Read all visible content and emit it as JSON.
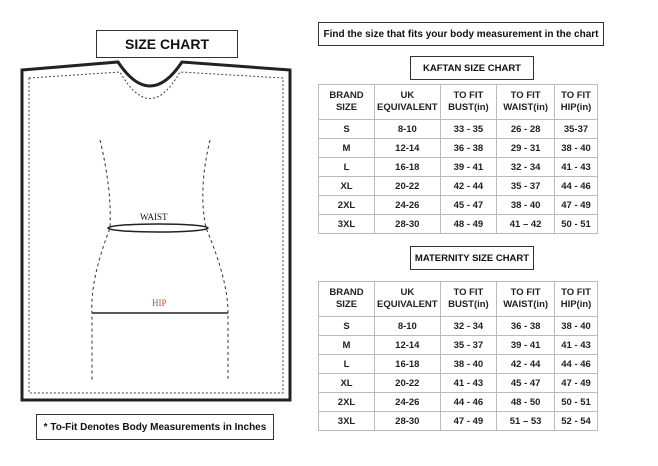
{
  "title": "SIZE CHART",
  "instruction": "Find the size that fits your body measurement in the chart",
  "footnote": "* To-Fit Denotes Body Measurements in Inches",
  "drawing": {
    "waist_label": "WAIST",
    "hip_label": "HIP",
    "label_color": "#b0532e"
  },
  "headers": [
    [
      "BRAND",
      "SIZE"
    ],
    [
      "UK",
      "EQUIVALENT"
    ],
    [
      "TO FIT",
      "BUST(in)"
    ],
    [
      "TO FIT",
      "WAIST(in)"
    ],
    [
      "TO FIT",
      "HIP(in)"
    ]
  ],
  "kaftan": {
    "title": "KAFTAN SIZE CHART",
    "rows": [
      [
        "S",
        "8-10",
        "33 - 35",
        "26 - 28",
        "35-37"
      ],
      [
        "M",
        "12-14",
        "36 - 38",
        "29 - 31",
        "38 - 40"
      ],
      [
        "L",
        "16-18",
        "39 - 41",
        "32 - 34",
        "41 - 43"
      ],
      [
        "XL",
        "20-22",
        "42 - 44",
        "35 - 37",
        "44 - 46"
      ],
      [
        "2XL",
        "24-26",
        "45 - 47",
        "38 - 40",
        "47 - 49"
      ],
      [
        "3XL",
        "28-30",
        "48 - 49",
        "41 – 42",
        "50 - 51"
      ]
    ]
  },
  "maternity": {
    "title": "MATERNITY SIZE CHART",
    "rows": [
      [
        "S",
        "8-10",
        "32 - 34",
        "36 - 38",
        "38 - 40"
      ],
      [
        "M",
        "12-14",
        "35 - 37",
        "39 - 41",
        "41 - 43"
      ],
      [
        "L",
        "16-18",
        "38 - 40",
        "42 - 44",
        "44 - 46"
      ],
      [
        "XL",
        "20-22",
        "41 - 43",
        "45 - 47",
        "47 - 49"
      ],
      [
        "2XL",
        "24-26",
        "44 - 46",
        "48 - 50",
        "50 - 51"
      ],
      [
        "3XL",
        "28-30",
        "47 - 49",
        "51 – 53",
        "52 - 54"
      ]
    ]
  }
}
